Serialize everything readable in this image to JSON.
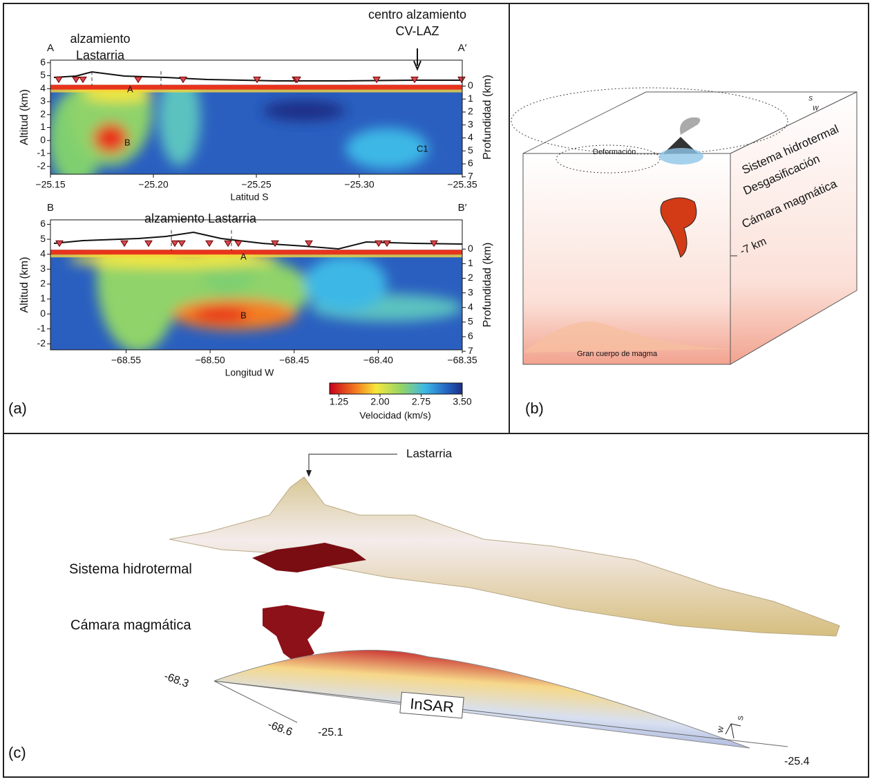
{
  "panel_a": {
    "label": "(a)",
    "top": {
      "start": "A",
      "end": "A′",
      "x_label": "Latitud S",
      "y_label": "Altitud (km)",
      "y2_label": "Profundidad (km)",
      "xlim": [
        -25.15,
        -25.35
      ],
      "xticks": [
        {
          "value": -25.15,
          "label": "−25.15"
        },
        {
          "value": -25.2,
          "label": "−25.20"
        },
        {
          "value": -25.25,
          "label": "−25.25"
        },
        {
          "value": -25.3,
          "label": "−25.30"
        },
        {
          "value": -25.35,
          "label": "−25.35"
        }
      ],
      "ylim": [
        -2.6,
        6.2
      ],
      "yticks": [
        -2,
        -1,
        0,
        1,
        2,
        3,
        4,
        5,
        6
      ],
      "y2lim": [
        6.8,
        -2.0
      ],
      "y2ticks": [
        0,
        1,
        2,
        3,
        4,
        5,
        6,
        7
      ],
      "callouts": [
        [
          "alzamiento",
          "Lastarria"
        ],
        [
          "centro alzamiento",
          "CV-LAZ"
        ]
      ],
      "anomalies": [
        "A",
        "B",
        "C1"
      ]
    },
    "bottom": {
      "start": "B",
      "end": "B′",
      "x_label": "Longitud W",
      "y_label": "Altitud (km)",
      "y2_label": "Profundidad (km)",
      "xlim": [
        -68.595,
        -68.35
      ],
      "xticks": [
        {
          "value": -68.55,
          "label": "−68.55"
        },
        {
          "value": -68.5,
          "label": "−68.50"
        },
        {
          "value": -68.45,
          "label": "−68.45"
        },
        {
          "value": -68.4,
          "label": "−68.40"
        },
        {
          "value": -68.35,
          "label": "−68.35"
        }
      ],
      "ylim": [
        -2.4,
        6.3
      ],
      "yticks": [
        -2,
        -1,
        0,
        1,
        2,
        3,
        4,
        5,
        6
      ],
      "y2lim": [
        6.9,
        -2.0
      ],
      "y2ticks": [
        0,
        1,
        2,
        3,
        4,
        5,
        6,
        7
      ],
      "callouts": [
        [
          "alzamiento Lastarria"
        ]
      ],
      "anomalies": [
        "A",
        "B"
      ]
    },
    "colorbar": {
      "label": "Velocidad (km/s)",
      "clim": [
        1.08,
        3.5
      ],
      "ticks": [
        {
          "value": 1.25,
          "label": "1.25"
        },
        {
          "value": 2.0,
          "label": "2.00"
        },
        {
          "value": 2.75,
          "label": "2.75"
        },
        {
          "value": 3.5,
          "label": "3.50"
        }
      ]
    }
  },
  "panel_b": {
    "label": "(b)",
    "layers": [
      "Sistema hidrotermal",
      "Desgasificación",
      "Cámara magmática"
    ],
    "depth": "-7 km",
    "deformation": "Deformación",
    "magma_body": "Gran cuerpo de magma",
    "compass": [
      "S",
      "W"
    ]
  },
  "panel_c": {
    "label": "(c)",
    "volcano": "Lastarria",
    "hydrothermal": "Sistema hidrotermal",
    "chamber": "Cámara magmática",
    "insar": "InSAR",
    "coords": [
      "-68.3",
      "-68.6",
      "-25.1",
      "-25.4"
    ],
    "compass": [
      "S",
      "W"
    ]
  }
}
